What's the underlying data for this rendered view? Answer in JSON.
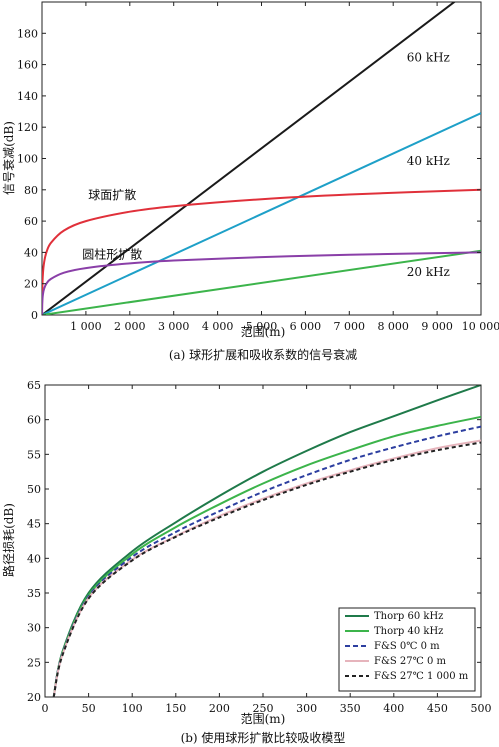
{
  "chart_data": [
    {
      "type": "line",
      "caption": "(a) 球形扩展和吸收系数的信号衰减",
      "xlabel": "范围(m)",
      "ylabel": "信号衰减(dB)",
      "xlim": [
        0,
        10000
      ],
      "ylim": [
        0,
        200
      ],
      "xticks": [
        1000,
        2000,
        3000,
        4000,
        5000,
        6000,
        7000,
        8000,
        9000,
        10000
      ],
      "xtick_labels": [
        "1 000",
        "2 000",
        "3 000",
        "4 000",
        "5 000",
        "6 000",
        "7 000",
        "8 000",
        "9 000",
        "10 000"
      ],
      "yticks": [
        0,
        20,
        40,
        60,
        80,
        100,
        120,
        140,
        160,
        180
      ],
      "yticks_labels": [
        "0",
        "20",
        "40",
        "60",
        "80",
        "100",
        "120",
        "140",
        "160",
        "180"
      ],
      "grid": false,
      "series": [
        {
          "name": "60 kHz",
          "color": "#1a1a1a",
          "x": [
            0,
            10000
          ],
          "y": [
            0,
            213
          ]
        },
        {
          "name": "40 kHz",
          "color": "#1ea0c8",
          "x": [
            0,
            10000
          ],
          "y": [
            0,
            129
          ]
        },
        {
          "name": "20 kHz",
          "color": "#3cb44b",
          "x": [
            0,
            10000
          ],
          "y": [
            0,
            41
          ]
        },
        {
          "name": "球面扩散",
          "color": "#e0303a",
          "x": [
            1,
            5,
            20,
            50,
            100,
            200,
            500,
            1000,
            2000,
            3000,
            5000,
            7000,
            10000
          ],
          "y": [
            0,
            14,
            26,
            34,
            40,
            46,
            54,
            60,
            66,
            69.5,
            74,
            77,
            80
          ]
        },
        {
          "name": "圆柱形扩散",
          "color": "#8a3fa8",
          "x": [
            1,
            5,
            20,
            50,
            100,
            200,
            500,
            1000,
            2000,
            3000,
            5000,
            7000,
            10000
          ],
          "y": [
            0,
            7,
            13,
            17,
            20,
            23,
            27,
            30,
            33,
            34.8,
            37,
            38.5,
            40
          ]
        }
      ],
      "annotations": [
        {
          "text": "60 kHz",
          "x": 8800,
          "y": 162
        },
        {
          "text": "40 kHz",
          "x": 8800,
          "y": 96
        },
        {
          "text": "20 kHz",
          "x": 8800,
          "y": 25
        },
        {
          "text": "球面扩散",
          "x": 1600,
          "y": 74
        },
        {
          "text": "圆柱形扩散",
          "x": 1600,
          "y": 36
        }
      ]
    },
    {
      "type": "line",
      "caption": "(b) 使用球形扩散比较吸收模型",
      "xlabel": "范围(m)",
      "ylabel": "路径损耗(dB)",
      "xlim": [
        0,
        500
      ],
      "ylim": [
        20,
        65
      ],
      "xticks": [
        0,
        50,
        100,
        150,
        200,
        250,
        300,
        350,
        400,
        450,
        500
      ],
      "xtick_labels": [
        "0",
        "50",
        "100",
        "150",
        "200",
        "250",
        "300",
        "350",
        "400",
        "450",
        "500"
      ],
      "yticks": [
        20,
        25,
        30,
        35,
        40,
        45,
        50,
        55,
        60,
        65
      ],
      "yticks_labels": [
        "20",
        "25",
        "30",
        "35",
        "40",
        "45",
        "50",
        "55",
        "60",
        "65"
      ],
      "grid": false,
      "legend_position": "lower-right",
      "series": [
        {
          "name": "Thorp 60 kHz",
          "color": "#1f7a4a",
          "dash": "",
          "x": [
            10,
            20,
            50,
            100,
            150,
            200,
            250,
            300,
            350,
            400,
            450,
            500
          ],
          "y": [
            20,
            26.5,
            35,
            41,
            45.2,
            49,
            52.5,
            55.5,
            58.2,
            60.5,
            62.8,
            65
          ]
        },
        {
          "name": "Thorp 40 kHz",
          "color": "#3cb44b",
          "dash": "",
          "x": [
            10,
            20,
            50,
            100,
            150,
            200,
            250,
            300,
            350,
            400,
            450,
            500
          ],
          "y": [
            20,
            26.3,
            34.7,
            40.6,
            44.5,
            47.8,
            50.8,
            53.4,
            55.6,
            57.6,
            59.1,
            60.4
          ]
        },
        {
          "name": "F&S 0℃ 0 m",
          "color": "#2d3fa0",
          "dash": "5,3",
          "x": [
            10,
            20,
            50,
            100,
            150,
            200,
            250,
            300,
            350,
            400,
            450,
            500
          ],
          "y": [
            20,
            26.2,
            34.5,
            40.2,
            43.8,
            46.8,
            49.6,
            52,
            54.2,
            56,
            57.6,
            59
          ]
        },
        {
          "name": "F&S 27℃ 0 m",
          "color": "#e6b4bc",
          "dash": "",
          "x": [
            10,
            20,
            50,
            100,
            150,
            200,
            250,
            300,
            350,
            400,
            450,
            500
          ],
          "y": [
            20,
            26.1,
            34.3,
            39.8,
            43.2,
            46.1,
            48.6,
            50.8,
            52.7,
            54.4,
            55.9,
            57
          ]
        },
        {
          "name": "F&S 27℃ 1 000 m",
          "color": "#222222",
          "dash": "4,3",
          "x": [
            10,
            20,
            50,
            100,
            150,
            200,
            250,
            300,
            350,
            400,
            450,
            500
          ],
          "y": [
            20,
            26,
            34.2,
            39.7,
            43.1,
            45.9,
            48.4,
            50.6,
            52.5,
            54.2,
            55.6,
            56.7
          ]
        }
      ]
    }
  ]
}
